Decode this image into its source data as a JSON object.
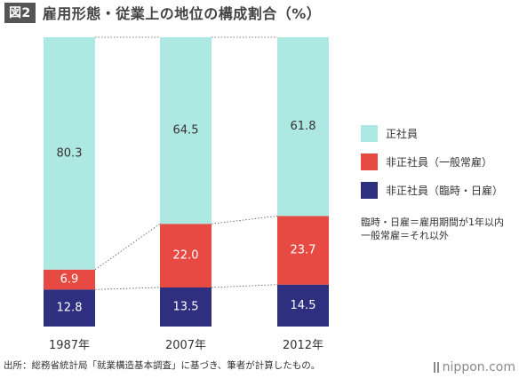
{
  "header": {
    "badge": "図2",
    "title": "雇用形態・従業上の地位の構成割合（%）"
  },
  "chart_data": {
    "type": "bar",
    "stacked": true,
    "categories": [
      "1987年",
      "2007年",
      "2012年"
    ],
    "series": [
      {
        "name": "非正社員（臨時・日雇）",
        "values": [
          12.8,
          13.5,
          14.5
        ],
        "color": "#2e2f7f",
        "label_color": "#ffffff"
      },
      {
        "name": "非正社員（一般常雇）",
        "values": [
          6.9,
          22.0,
          23.7
        ],
        "color": "#e64a42",
        "label_color": "#ffffff"
      },
      {
        "name": "正社員",
        "values": [
          80.3,
          64.5,
          61.8
        ],
        "color": "#aee8e2",
        "label_color": "#333333"
      }
    ],
    "ylim": [
      0,
      100
    ],
    "connector_lines": "dotted",
    "legend_position": "right"
  },
  "legend": {
    "items": [
      {
        "label": "正社員",
        "color": "#aee8e2"
      },
      {
        "label": "非正社員（一般常雇）",
        "color": "#e64a42"
      },
      {
        "label": "非正社員（臨時・日雇）",
        "color": "#2e2f7f"
      }
    ]
  },
  "note": {
    "line1": "臨時・日雇＝雇用期間が1年以内",
    "line2": "一般常雇＝それ以外"
  },
  "footer": {
    "source": "出所：総務省統計局「就業構造基本調査」に基づき、筆者が計算したもの。"
  },
  "brand": {
    "name": "nippon.com"
  }
}
